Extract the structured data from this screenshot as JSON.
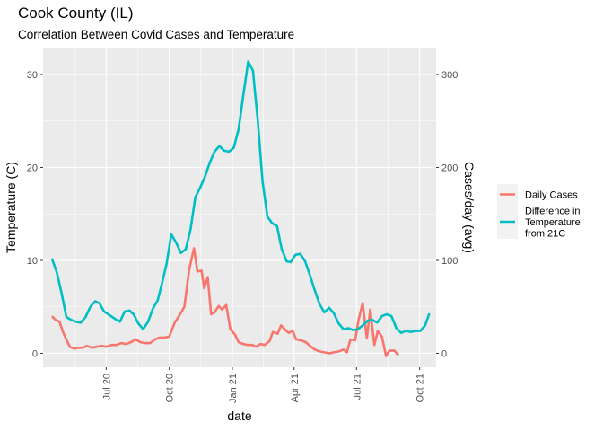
{
  "chart_data": {
    "type": "line",
    "title": "Cook County (IL)",
    "subtitle": "Correlation Between Covid Cases and Temperature",
    "xlabel": "date",
    "ylabel_left": "Temperature (C)",
    "ylabel_right": "Cases/day (avg)",
    "x_ticks": [
      "Jul 20",
      "Oct 20",
      "Jan 21",
      "Apr 21",
      "Jul 21",
      "Oct 21"
    ],
    "x_tick_dates": [
      "2020-07-01",
      "2020-10-01",
      "2021-01-01",
      "2021-04-01",
      "2021-07-01",
      "2021-10-01"
    ],
    "xlim": [
      "2020-03-31",
      "2021-10-25"
    ],
    "y_left_ticks": [
      "0",
      "10",
      "20",
      "30"
    ],
    "y_left_lim": [
      -1.5,
      32.8
    ],
    "y_right_ticks": [
      "0",
      "100",
      "200",
      "300"
    ],
    "y_right_lim": [
      -15,
      328
    ],
    "grid": true,
    "legend_position": "right",
    "series": [
      {
        "name": "Daily Cases",
        "axis": "left",
        "color": "#F8766D",
        "points": [
          [
            "2020-04-13",
            4.0
          ],
          [
            "2020-04-18",
            3.6
          ],
          [
            "2020-04-24",
            3.4
          ],
          [
            "2020-04-29",
            2.3
          ],
          [
            "2020-05-05",
            1.3
          ],
          [
            "2020-05-09",
            0.7
          ],
          [
            "2020-05-15",
            0.5
          ],
          [
            "2020-05-21",
            0.6
          ],
          [
            "2020-05-28",
            0.6
          ],
          [
            "2020-06-03",
            0.8
          ],
          [
            "2020-06-10",
            0.6
          ],
          [
            "2020-06-17",
            0.7
          ],
          [
            "2020-06-25",
            0.8
          ],
          [
            "2020-07-01",
            0.7
          ],
          [
            "2020-07-09",
            0.9
          ],
          [
            "2020-07-16",
            0.9
          ],
          [
            "2020-07-23",
            1.1
          ],
          [
            "2020-07-30",
            1.0
          ],
          [
            "2020-08-06",
            1.2
          ],
          [
            "2020-08-13",
            1.5
          ],
          [
            "2020-08-20",
            1.2
          ],
          [
            "2020-08-27",
            1.1
          ],
          [
            "2020-09-03",
            1.1
          ],
          [
            "2020-09-10",
            1.5
          ],
          [
            "2020-09-17",
            1.7
          ],
          [
            "2020-09-24",
            1.7
          ],
          [
            "2020-10-01",
            1.8
          ],
          [
            "2020-10-09",
            3.3
          ],
          [
            "2020-10-16",
            4.1
          ],
          [
            "2020-10-23",
            5.0
          ],
          [
            "2020-10-30",
            9.0
          ],
          [
            "2020-11-06",
            11.3
          ],
          [
            "2020-11-11",
            8.8
          ],
          [
            "2020-11-17",
            8.9
          ],
          [
            "2020-11-21",
            7.0
          ],
          [
            "2020-11-26",
            8.2
          ],
          [
            "2020-12-01",
            4.2
          ],
          [
            "2020-12-06",
            4.4
          ],
          [
            "2020-12-12",
            5.1
          ],
          [
            "2020-12-17",
            4.7
          ],
          [
            "2020-12-23",
            5.2
          ],
          [
            "2020-12-29",
            2.6
          ],
          [
            "2021-01-05",
            2.0
          ],
          [
            "2021-01-10",
            1.2
          ],
          [
            "2021-01-17",
            1.0
          ],
          [
            "2021-01-23",
            0.9
          ],
          [
            "2021-01-30",
            0.9
          ],
          [
            "2021-02-05",
            0.7
          ],
          [
            "2021-02-11",
            1.0
          ],
          [
            "2021-02-17",
            0.9
          ],
          [
            "2021-02-24",
            1.3
          ],
          [
            "2021-03-01",
            2.3
          ],
          [
            "2021-03-08",
            2.1
          ],
          [
            "2021-03-13",
            3.0
          ],
          [
            "2021-03-18",
            2.6
          ],
          [
            "2021-03-24",
            2.2
          ],
          [
            "2021-03-30",
            2.4
          ],
          [
            "2021-04-04",
            1.5
          ],
          [
            "2021-04-11",
            1.4
          ],
          [
            "2021-04-18",
            1.2
          ],
          [
            "2021-04-24",
            0.8
          ],
          [
            "2021-05-01",
            0.4
          ],
          [
            "2021-05-08",
            0.2
          ],
          [
            "2021-05-15",
            0.1
          ],
          [
            "2021-05-22",
            0.0
          ],
          [
            "2021-05-29",
            0.1
          ],
          [
            "2021-06-05",
            0.2
          ],
          [
            "2021-06-12",
            0.4
          ],
          [
            "2021-06-17",
            0.1
          ],
          [
            "2021-06-22",
            1.5
          ],
          [
            "2021-06-29",
            1.4
          ],
          [
            "2021-07-04",
            3.6
          ],
          [
            "2021-07-10",
            5.4
          ],
          [
            "2021-07-16",
            1.6
          ],
          [
            "2021-07-21",
            4.7
          ],
          [
            "2021-07-27",
            0.9
          ],
          [
            "2021-08-01",
            2.4
          ],
          [
            "2021-08-07",
            1.8
          ],
          [
            "2021-08-13",
            -0.3
          ],
          [
            "2021-08-18",
            0.3
          ],
          [
            "2021-08-25",
            0.3
          ],
          [
            "2021-08-31",
            -0.2
          ]
        ]
      },
      {
        "name": "Difference in Temperature from 21C",
        "axis": "right",
        "color": "#00BFC4",
        "points": [
          [
            "2020-04-13",
            102
          ],
          [
            "2020-04-20",
            87
          ],
          [
            "2020-04-27",
            65
          ],
          [
            "2020-05-04",
            39
          ],
          [
            "2020-05-11",
            36
          ],
          [
            "2020-05-18",
            34
          ],
          [
            "2020-05-25",
            33
          ],
          [
            "2020-06-01",
            39
          ],
          [
            "2020-06-08",
            50
          ],
          [
            "2020-06-15",
            56
          ],
          [
            "2020-06-21",
            54
          ],
          [
            "2020-06-28",
            45
          ],
          [
            "2020-07-06",
            41
          ],
          [
            "2020-07-14",
            37
          ],
          [
            "2020-07-21",
            34
          ],
          [
            "2020-07-28",
            45
          ],
          [
            "2020-08-04",
            46
          ],
          [
            "2020-08-10",
            42
          ],
          [
            "2020-08-17",
            32
          ],
          [
            "2020-08-24",
            26
          ],
          [
            "2020-08-31",
            34
          ],
          [
            "2020-09-07",
            48
          ],
          [
            "2020-09-14",
            57
          ],
          [
            "2020-09-20",
            74
          ],
          [
            "2020-09-27",
            96
          ],
          [
            "2020-10-04",
            128
          ],
          [
            "2020-10-11",
            119
          ],
          [
            "2020-10-18",
            108
          ],
          [
            "2020-10-25",
            112
          ],
          [
            "2020-11-01",
            133
          ],
          [
            "2020-11-08",
            168
          ],
          [
            "2020-11-15",
            178
          ],
          [
            "2020-11-22",
            190
          ],
          [
            "2020-11-29",
            205
          ],
          [
            "2020-12-06",
            217
          ],
          [
            "2020-12-13",
            223
          ],
          [
            "2020-12-20",
            218
          ],
          [
            "2020-12-27",
            217
          ],
          [
            "2021-01-03",
            221
          ],
          [
            "2021-01-10",
            241
          ],
          [
            "2021-01-17",
            278
          ],
          [
            "2021-01-24",
            314
          ],
          [
            "2021-01-31",
            304
          ],
          [
            "2021-02-07",
            250
          ],
          [
            "2021-02-14",
            185
          ],
          [
            "2021-02-21",
            147
          ],
          [
            "2021-02-28",
            140
          ],
          [
            "2021-03-07",
            137
          ],
          [
            "2021-03-14",
            112
          ],
          [
            "2021-03-21",
            99
          ],
          [
            "2021-03-27",
            98
          ],
          [
            "2021-04-03",
            106
          ],
          [
            "2021-04-10",
            107
          ],
          [
            "2021-04-17",
            99
          ],
          [
            "2021-04-24",
            84
          ],
          [
            "2021-05-01",
            68
          ],
          [
            "2021-05-08",
            53
          ],
          [
            "2021-05-15",
            44
          ],
          [
            "2021-05-22",
            49
          ],
          [
            "2021-05-29",
            43
          ],
          [
            "2021-06-05",
            32
          ],
          [
            "2021-06-12",
            26
          ],
          [
            "2021-06-19",
            27
          ],
          [
            "2021-06-26",
            25
          ],
          [
            "2021-07-03",
            26
          ],
          [
            "2021-07-10",
            30
          ],
          [
            "2021-07-17",
            35
          ],
          [
            "2021-07-24",
            36
          ],
          [
            "2021-07-31",
            33
          ],
          [
            "2021-08-07",
            40
          ],
          [
            "2021-08-14",
            42
          ],
          [
            "2021-08-21",
            40
          ],
          [
            "2021-08-28",
            27
          ],
          [
            "2021-09-04",
            22
          ],
          [
            "2021-09-11",
            24
          ],
          [
            "2021-09-18",
            23
          ],
          [
            "2021-09-25",
            24
          ],
          [
            "2021-10-02",
            24
          ],
          [
            "2021-10-09",
            30
          ],
          [
            "2021-10-15",
            43
          ]
        ]
      }
    ],
    "legend": {
      "items": [
        {
          "label_lines": [
            "Daily Cases"
          ],
          "color": "#F8766D"
        },
        {
          "label_lines": [
            "Difference in",
            "Temperature",
            "from 21C"
          ],
          "color": "#00BFC4"
        }
      ]
    }
  }
}
